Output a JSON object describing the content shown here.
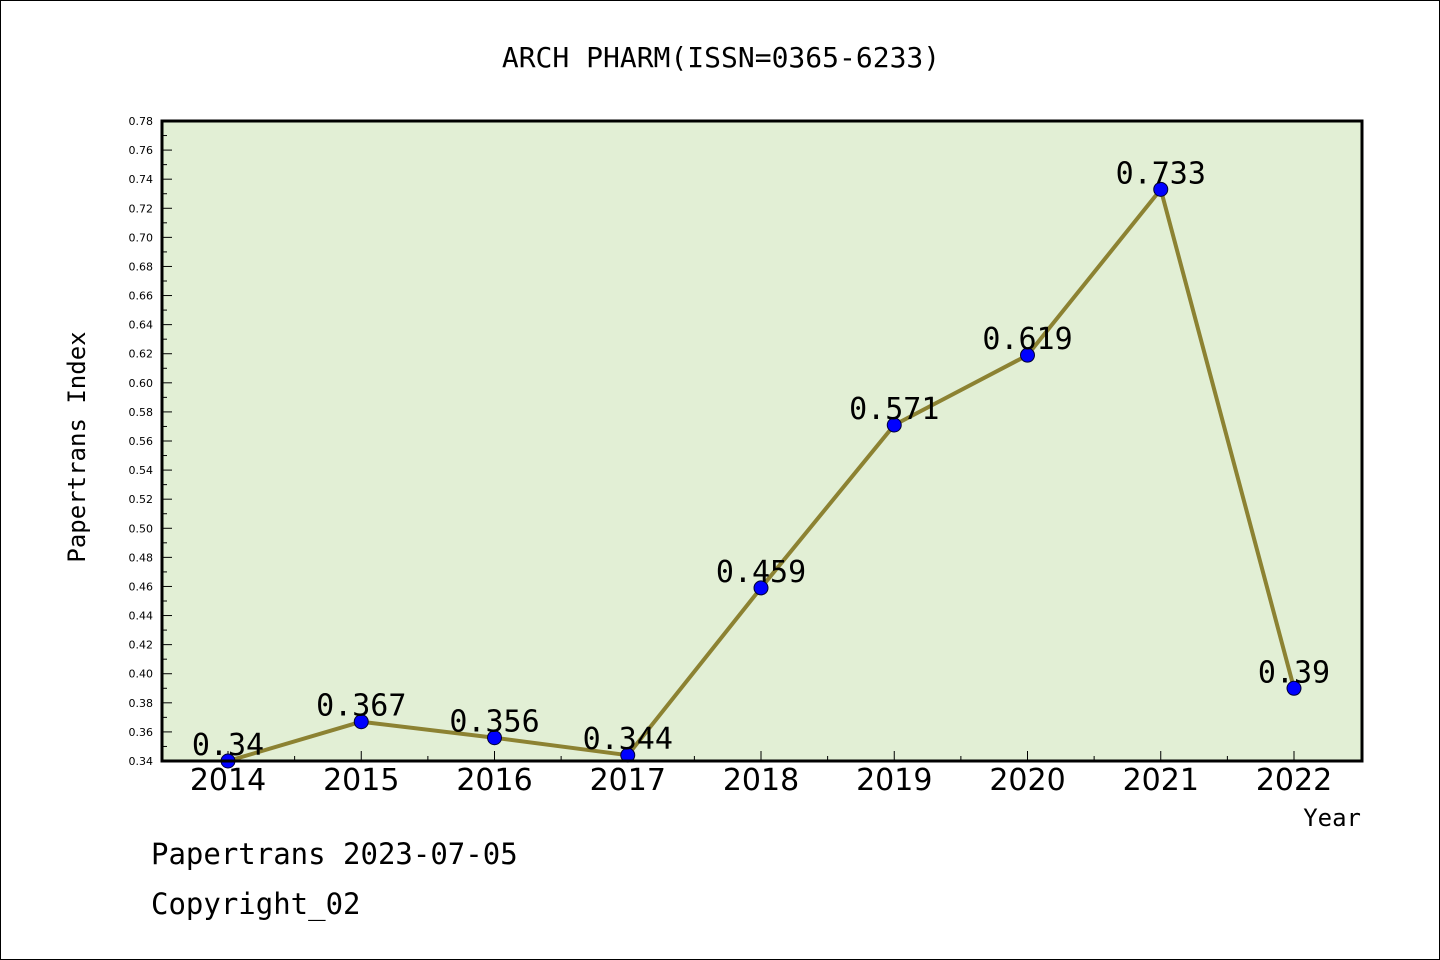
{
  "chart_data": {
    "type": "line",
    "title": "ARCH PHARM(ISSN=0365-6233)",
    "xlabel": "Year",
    "ylabel": "Papertrans Index",
    "categories": [
      "2014",
      "2015",
      "2016",
      "2017",
      "2018",
      "2019",
      "2020",
      "2021",
      "2022"
    ],
    "values": [
      0.34,
      0.367,
      0.356,
      0.344,
      0.459,
      0.571,
      0.619,
      0.733,
      0.39
    ],
    "data_labels": [
      "0.34",
      "0.367",
      "0.356",
      "0.344",
      "0.459",
      "0.571",
      "0.619",
      "0.733",
      "0.39"
    ],
    "ylim": [
      0.34,
      0.78
    ],
    "yticks": [
      "0.34",
      "0.36",
      "0.38",
      "0.40",
      "0.42",
      "0.44",
      "0.46",
      "0.48",
      "0.50",
      "0.52",
      "0.54",
      "0.56",
      "0.58",
      "0.60",
      "0.62",
      "0.64",
      "0.66",
      "0.68",
      "0.70",
      "0.72",
      "0.74",
      "0.76",
      "0.78"
    ],
    "grid": false,
    "colors": {
      "plot_background": "#e2efd5",
      "line": "#8c8232",
      "marker": "#0000ff"
    }
  },
  "footer": {
    "line1": "Papertrans 2023-07-05",
    "line2": "Copyright_02"
  }
}
